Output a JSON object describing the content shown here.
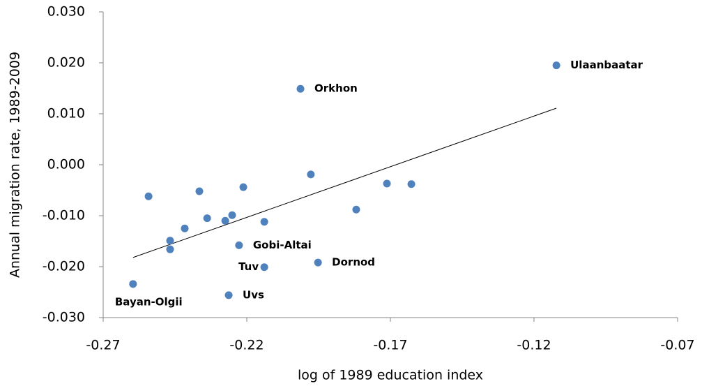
{
  "chart_data": {
    "type": "scatter",
    "x_label": "log of 1989 education index",
    "y_label": "Annual migration rate, 1989-2009",
    "color": "#4f81bd",
    "x": [
      -0.1122,
      -0.2013,
      -0.1977,
      -0.1712,
      -0.1627,
      -0.1819,
      -0.1952,
      -0.2139,
      -0.2139,
      -0.2263,
      -0.2227,
      -0.2212,
      -0.2251,
      -0.2275,
      -0.2338,
      -0.2365,
      -0.2416,
      -0.2467,
      -0.2467,
      -0.2542,
      -0.2596
    ],
    "y": [
      0.0195,
      0.0149,
      -0.0019,
      -0.0037,
      -0.0038,
      -0.0088,
      -0.0192,
      -0.0112,
      -0.0201,
      -0.0256,
      -0.0158,
      -0.0044,
      -0.0099,
      -0.011,
      -0.0105,
      -0.0052,
      -0.0125,
      -0.0149,
      -0.0166,
      -0.0062,
      -0.0234
    ],
    "labels": [
      "Ulaanbaatar",
      "Orkhon",
      null,
      null,
      null,
      null,
      "Dornod",
      null,
      "Tuv",
      "Uvs",
      "Gobi-Altai",
      null,
      null,
      null,
      null,
      null,
      null,
      null,
      null,
      null,
      "Bayan-Olgii"
    ],
    "trendline": {
      "x": [
        -0.2596,
        -0.1122
      ],
      "y": [
        -0.0182,
        0.0111
      ]
    },
    "xlim": [
      -0.27,
      -0.07
    ],
    "xticks": [
      -0.27,
      -0.22,
      -0.17,
      -0.12,
      -0.07
    ],
    "ylim": [
      -0.03,
      0.03
    ],
    "yticks": [
      {
        "value": -0.03,
        "label": "-0.030"
      },
      {
        "value": -0.02,
        "label": "-0.020"
      },
      {
        "value": -0.01,
        "label": "-0.010"
      },
      {
        "value": 0,
        "label": "0.000"
      },
      {
        "value": 0.01,
        "label": "0.010"
      },
      {
        "value": 0.02,
        "label": "0.020"
      },
      {
        "value": 0.03,
        "label": "0.030"
      }
    ]
  }
}
